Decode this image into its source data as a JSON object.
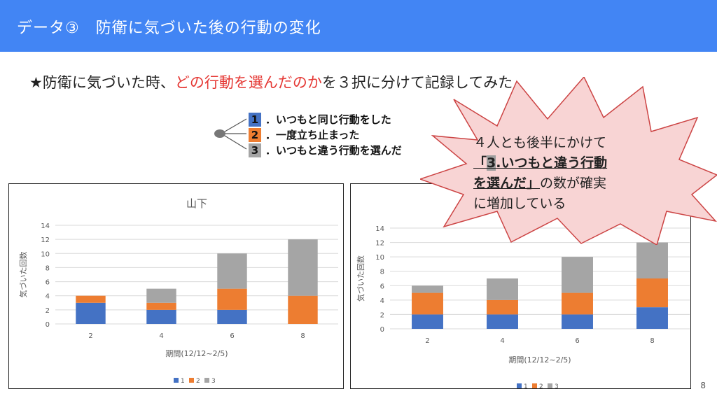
{
  "header": {
    "title": "データ③　防衛に気づいた後の行動の変化"
  },
  "subtitle": {
    "prefix": "★防衛に気づいた時、",
    "highlight": "どの行動を選んだのか",
    "suffix": "を３択に分けて記録してみた"
  },
  "options": [
    {
      "num": "1",
      "text": "．いつもと同じ行動をした",
      "color": "#4472c4"
    },
    {
      "num": "2",
      "text": "．一度立ち止まった",
      "color": "#ed7d31"
    },
    {
      "num": "3",
      "text": "．いつもと違う行動を選んだ",
      "color": "#a5a5a5"
    }
  ],
  "callout": {
    "line1": "４人とも後半にかけて",
    "quote_open": "「",
    "num": "3",
    "line2_rest": ".いつもと違う行動",
    "line3_u": "を選んだ」",
    "line3_rest": "の数が確実",
    "line4": "に増加している"
  },
  "page_number": "8",
  "chart_data": [
    {
      "type": "bar",
      "stacked": true,
      "title": "山下",
      "categories": [
        "2",
        "4",
        "6",
        "8"
      ],
      "series": [
        {
          "name": "1",
          "values": [
            3,
            2,
            2,
            0
          ],
          "color": "#4472c4"
        },
        {
          "name": "2",
          "values": [
            1,
            1,
            3,
            4
          ],
          "color": "#ed7d31"
        },
        {
          "name": "3",
          "values": [
            0,
            2,
            5,
            8
          ],
          "color": "#a5a5a5"
        }
      ],
      "yticks": [
        "0",
        "2",
        "4",
        "6",
        "8",
        "10",
        "12",
        "14"
      ],
      "ylim": [
        0,
        14
      ],
      "xlabel": "期間(12/12~2/5)",
      "ylabel": "気づいた回数",
      "grid": true,
      "legend": "bottom"
    },
    {
      "type": "bar",
      "stacked": true,
      "title": "",
      "categories": [
        "2",
        "4",
        "6",
        "8"
      ],
      "series": [
        {
          "name": "1",
          "values": [
            2,
            2,
            2,
            3
          ],
          "color": "#4472c4"
        },
        {
          "name": "2",
          "values": [
            3,
            2,
            3,
            4
          ],
          "color": "#ed7d31"
        },
        {
          "name": "3",
          "values": [
            1,
            3,
            5,
            5
          ],
          "color": "#a5a5a5"
        }
      ],
      "yticks": [
        "0",
        "2",
        "4",
        "6",
        "8",
        "10",
        "12",
        "14"
      ],
      "ylim": [
        0,
        14
      ],
      "xlabel": "期間(12/12~2/5)",
      "ylabel": "気づいた回数",
      "grid": true,
      "legend": "bottom"
    }
  ]
}
